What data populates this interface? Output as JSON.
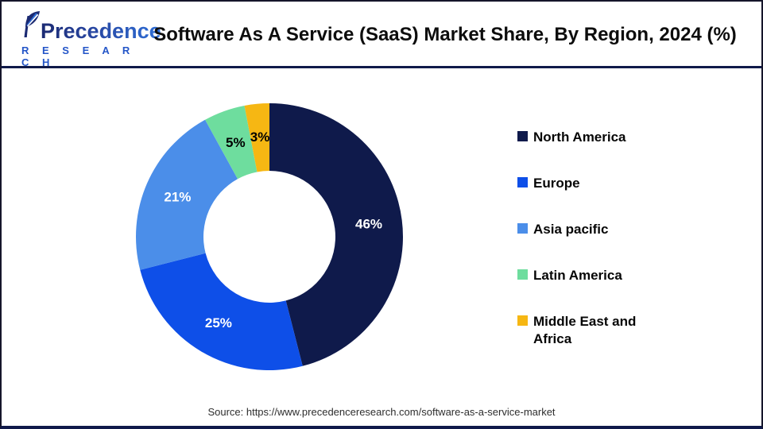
{
  "header": {
    "logo": {
      "brand": "Precedence",
      "sub": "R E S E A R C H"
    },
    "title": "Software As A Service (SaaS) Market Share, By Region, 2024 (%)"
  },
  "chart_data": {
    "type": "pie",
    "subtype": "donut",
    "title": "Software As A Service (SaaS) Market Share, By Region, 2024 (%)",
    "categories": [
      "North America",
      "Europe",
      "Asia pacific",
      "Latin America",
      "Middle East and Africa"
    ],
    "values": [
      46,
      25,
      21,
      5,
      3
    ],
    "labels": [
      "46%",
      "25%",
      "21%",
      "5%",
      "3%"
    ],
    "colors": [
      "#0f1a4b",
      "#0e4fe8",
      "#4b8ee9",
      "#6edd9e",
      "#f6b713"
    ],
    "label_colors": [
      "#ffffff",
      "#ffffff",
      "#ffffff",
      "#000000",
      "#000000"
    ],
    "start_angle": -90,
    "direction": "clockwise",
    "inner_radius_ratio": 0.5,
    "legend_position": "right",
    "unit": "%"
  },
  "footer": {
    "source": "Source: https://www.precedenceresearch.com/software-as-a-service-market"
  },
  "colors": {
    "brand_navy": "#101a4a",
    "brand_blue": "#2456c8",
    "divider": "#101a4a"
  }
}
